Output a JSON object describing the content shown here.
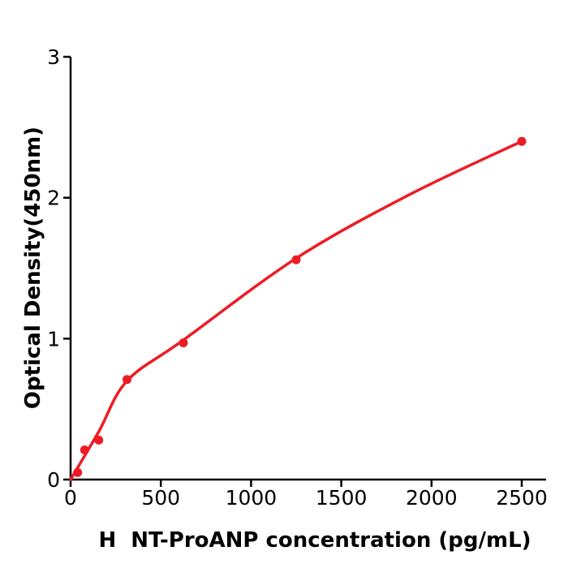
{
  "page": {
    "background": "#ffffff"
  },
  "chart_data": {
    "type": "scatter",
    "title": "",
    "xlabel": "H  NT-ProANP concentration (pg/mL)",
    "ylabel": "Optical Density(450nm)",
    "xlim": [
      0,
      2635
    ],
    "ylim": [
      0,
      3
    ],
    "x_ticks": [
      0,
      500,
      1000,
      1500,
      2000,
      2500
    ],
    "y_ticks": [
      0,
      1,
      2,
      3
    ],
    "grid": false,
    "legend": "none",
    "axis_color": "#000000",
    "accent_color": "#ed1c24",
    "series": [
      {
        "name": "standard-points",
        "type": "scatter",
        "color": "#ed1c24",
        "x": [
          39,
          78,
          156,
          312.5,
          625,
          1250,
          2500
        ],
        "y": [
          0.05,
          0.21,
          0.28,
          0.71,
          0.97,
          1.56,
          2.4
        ]
      },
      {
        "name": "fitted-curve",
        "type": "line",
        "color": "#ed1c24",
        "x": [
          0,
          156,
          312.5,
          625,
          1250,
          1875,
          2500
        ],
        "y": [
          0.0,
          0.34,
          0.7,
          0.99,
          1.57,
          2.02,
          2.4
        ]
      }
    ]
  }
}
